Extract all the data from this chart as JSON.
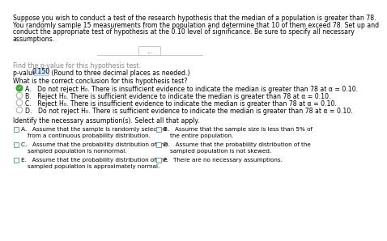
{
  "bg_color": "#ffffff",
  "text_color": "#000000",
  "gray_text": "#888888",
  "intro_line1": "Suppose you wish to conduct a test of the research hypothesis that the median of a population is greater than 78.",
  "intro_line2": "You randomly sample 15 measurements from the population and determine that 10 of them exceed 78. Set up and",
  "intro_line3": "conduct the appropriate test of hypothesis at the 0.10 level of significance. Be sure to specify all necessary",
  "intro_line4": "assumptions.",
  "find_label": "Find the p-value for this hypothesis test.",
  "pvalue_prefix": "p-value = ",
  "pvalue_value": "0.150",
  "pvalue_suffix": " (Round to three decimal places as needed.)",
  "conclusion_q": "What is the correct conclusion for this hypothesis test?",
  "opt_A": "Do not reject H₀. There is insufficient evidence to indicate the median is greater than 78 at α = 0.10.",
  "opt_B": "Reject H₀. There is sufficient evidence to indicate the median is greater than 78 at α = 0.10.",
  "opt_C": "Reject H₀. There is insufficient evidence to indicate the median is greater than 78 at α = 0.10.",
  "opt_D": "Do not reject H₀. There is sufficient evidence to indicate the median is greater than 78 at α = 0.10.",
  "assump_header": "Identify the necessary assumption(s). Select all that apply.",
  "aA1": "Assume that the sample is randomly selected",
  "aA2": "from a continuous probability distribution.",
  "aB1": "Assume that the sample size is less than 5% of",
  "aB2": "the entire population.",
  "aC1": "Assume that the probability distribution of the",
  "aC2": "sampled population is nonnormal.",
  "aD1": "Assume that the probability distribution of the",
  "aD2": "sampled population is not skewed.",
  "aE1": "Assume that the probability distribution of the",
  "aE2": "sampled population is approximately normal.",
  "aF1": "There are no necessary assumptions.",
  "check_green": "#3aaa35",
  "radio_gray": "#aaaaaa",
  "box_blue": "#5b9bd5",
  "highlight_bg": "#d0e8ff",
  "highlight_border": "#a0c0e8",
  "sep_color": "#bbbbbb",
  "dots_border": "#bbbbbb"
}
